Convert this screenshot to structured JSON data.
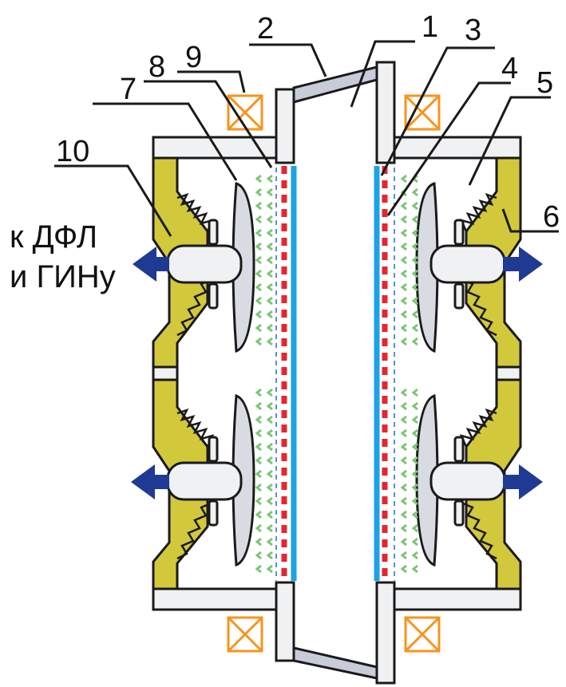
{
  "labels": {
    "n1": "1",
    "n2": "2",
    "n3": "3",
    "n4": "4",
    "n5": "5",
    "n6": "6",
    "n7": "7",
    "n8": "8",
    "n9": "9",
    "n10": "10"
  },
  "side_text": {
    "line1": "к ДФЛ",
    "line2": "и ГИНу"
  },
  "colors": {
    "frame_fill": "#f0f1f3",
    "stroke": "#1a1a1a",
    "yellow": "#d2c83c",
    "blue_layer": "#1aa3e6",
    "red_layer": "#e6262e",
    "dash_blue": "#5a8fd6",
    "green_arrow": "#7cc576",
    "coil": "#f7941d",
    "outlet_arrow": "#1f3a93"
  },
  "icons": {
    "outlet": "arrow-icon",
    "coil": "coil-icon"
  }
}
